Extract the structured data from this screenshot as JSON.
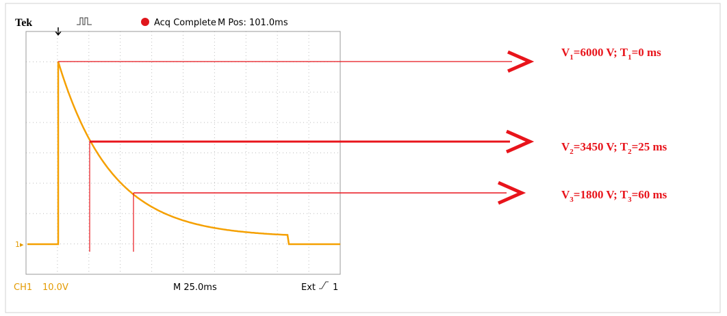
{
  "header": {
    "brand": "Tek",
    "status": "Acq Complete",
    "position": "M Pos: 101.0ms"
  },
  "footer": {
    "channel": "CH1",
    "scale": "10.0V",
    "timebase": "M 25.0ms",
    "trigger": "Ext",
    "trigger_level": "1"
  },
  "marker": "1",
  "annotations": [
    {
      "v": "V",
      "v_index": "1",
      "v_text": "=6000 V; ",
      "t": "T",
      "t_index": "1",
      "t_text": "=0 ms"
    },
    {
      "v": "V",
      "v_index": "2",
      "v_text": "=3450 V; ",
      "t": "T",
      "t_index": "2",
      "t_text": "=25 ms"
    },
    {
      "v": "V",
      "v_index": "3",
      "v_text": "=1800 V; ",
      "t": "T",
      "t_index": "3",
      "t_text": "=60 ms"
    }
  ]
}
